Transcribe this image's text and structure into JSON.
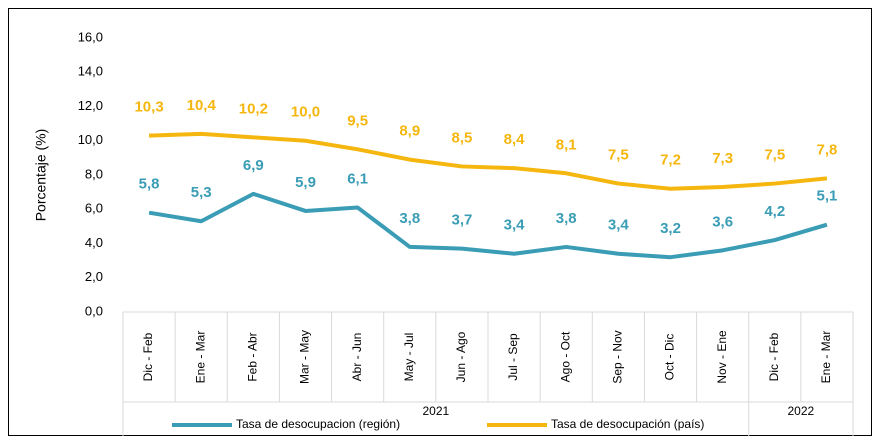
{
  "chart_data": {
    "type": "line",
    "y_label": "Porcentaje (%)",
    "categories": [
      "Dic - Feb",
      "Ene - Mar",
      "Feb - Abr",
      "Mar - May",
      "Abr - Jun",
      "May - Jul",
      "Jun - Ago",
      "Jul - Sep",
      "Ago - Oct",
      "Sep - Nov",
      "Oct - Dic",
      "Nov - Ene",
      "Dic - Feb",
      "Ene - Mar"
    ],
    "groups": [
      {
        "label": "2021",
        "span": 12
      },
      {
        "label": "2022",
        "span": 2
      }
    ],
    "series": [
      {
        "name": "Tasa de desocupacion (región)",
        "color": "#3a9db5",
        "values": [
          5.8,
          5.3,
          6.9,
          5.9,
          6.1,
          3.8,
          3.7,
          3.4,
          3.8,
          3.4,
          3.2,
          3.6,
          4.2,
          5.1
        ],
        "value_labels": [
          "5,8",
          "5,3",
          "6,9",
          "5,9",
          "6,1",
          "3,8",
          "3,7",
          "3,4",
          "3,8",
          "3,4",
          "3,2",
          "3,6",
          "4,2",
          "5,1"
        ]
      },
      {
        "name": "Tasa de desocupación (país)",
        "color": "#f5b70f",
        "values": [
          10.3,
          10.4,
          10.2,
          10.0,
          9.5,
          8.9,
          8.5,
          8.4,
          8.1,
          7.5,
          7.2,
          7.3,
          7.5,
          7.8
        ],
        "value_labels": [
          "10,3",
          "10,4",
          "10,2",
          "10,0",
          "9,5",
          "8,9",
          "8,5",
          "8,4",
          "8,1",
          "7,5",
          "7,2",
          "7,3",
          "7,5",
          "7,8"
        ]
      }
    ],
    "ylim": [
      0,
      16
    ],
    "yticks": [
      {
        "value": 0,
        "label": "0,0"
      },
      {
        "value": 2,
        "label": "2,0"
      },
      {
        "value": 4,
        "label": "4,0"
      },
      {
        "value": 6,
        "label": "6,0"
      },
      {
        "value": 8,
        "label": "8,0"
      },
      {
        "value": 10,
        "label": "10,0"
      },
      {
        "value": 12,
        "label": "12,0"
      },
      {
        "value": 14,
        "label": "14,0"
      },
      {
        "value": 16,
        "label": "16,0"
      }
    ],
    "grid": false,
    "legend": "bottom"
  }
}
